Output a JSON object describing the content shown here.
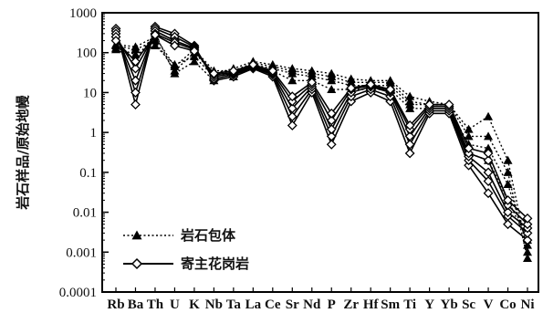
{
  "chart_data": {
    "type": "line",
    "ylabel": "岩石样品/原始地幔",
    "yscale": "log",
    "ylim": [
      0.0001,
      1000
    ],
    "yticks": [
      "1000",
      "100",
      "10",
      "1",
      "0.1",
      "0.01",
      "0.001",
      "0.0001"
    ],
    "categories": [
      "Rb",
      "Ba",
      "Th",
      "U",
      "K",
      "Nb",
      "Ta",
      "La",
      "Ce",
      "Sr",
      "Nd",
      "P",
      "Zr",
      "Hf",
      "Sm",
      "Ti",
      "Y",
      "Yb",
      "Sc",
      "V",
      "Co",
      "Ni"
    ],
    "legend_position": "bottom-left",
    "legend": [
      {
        "label": "岩石包体",
        "style": "dotted",
        "marker": "triangle"
      },
      {
        "label": "寄主花岗岩",
        "style": "solid",
        "marker": "diamond"
      }
    ],
    "series": [
      {
        "group": "enclave",
        "style": "dotted",
        "marker": "triangle",
        "values": [
          150,
          120,
          200,
          35,
          100,
          30,
          40,
          60,
          50,
          40,
          35,
          30,
          22,
          20,
          20,
          8,
          6,
          5,
          1.2,
          2.5,
          0.2,
          0.001
        ]
      },
      {
        "group": "enclave",
        "style": "dotted",
        "marker": "triangle",
        "values": [
          130,
          90,
          150,
          50,
          80,
          25,
          30,
          50,
          40,
          30,
          25,
          20,
          15,
          15,
          15,
          5,
          5,
          5,
          0.8,
          0.8,
          0.1,
          0.0007
        ]
      },
      {
        "group": "enclave",
        "style": "dotted",
        "marker": "triangle",
        "values": [
          120,
          70,
          300,
          30,
          60,
          20,
          25,
          45,
          35,
          20,
          20,
          12,
          12,
          12,
          12,
          4,
          4,
          4,
          0.5,
          0.4,
          0.05,
          0.0015
        ]
      },
      {
        "group": "enclave",
        "style": "dotted",
        "marker": "triangle",
        "values": [
          160,
          140,
          250,
          45,
          120,
          35,
          35,
          55,
          45,
          35,
          30,
          25,
          18,
          18,
          18,
          6,
          5,
          5,
          0.3,
          0.2,
          0.02,
          0.002
        ]
      },
      {
        "group": "host",
        "style": "solid",
        "marker": "diamond",
        "values": [
          400,
          5,
          450,
          300,
          150,
          20,
          25,
          40,
          25,
          1.5,
          10,
          0.5,
          6,
          10,
          6,
          0.3,
          3,
          3,
          0.15,
          0.03,
          0.005,
          0.002
        ]
      },
      {
        "group": "host",
        "style": "solid",
        "marker": "diamond",
        "values": [
          350,
          10,
          400,
          250,
          140,
          22,
          28,
          42,
          28,
          2.5,
          12,
          0.8,
          8,
          12,
          8,
          0.5,
          3.5,
          3.5,
          0.2,
          0.06,
          0.008,
          0.003
        ]
      },
      {
        "group": "host",
        "style": "solid",
        "marker": "diamond",
        "values": [
          300,
          20,
          350,
          200,
          130,
          25,
          30,
          45,
          30,
          4,
          14,
          1.2,
          10,
          14,
          10,
          0.8,
          4,
          4,
          0.25,
          0.1,
          0.01,
          0.004
        ]
      },
      {
        "group": "host",
        "style": "solid",
        "marker": "diamond",
        "values": [
          250,
          40,
          300,
          180,
          120,
          28,
          32,
          48,
          32,
          6,
          16,
          2,
          12,
          15,
          11,
          1.2,
          4.5,
          4.5,
          0.3,
          0.2,
          0.015,
          0.005
        ]
      },
      {
        "group": "host",
        "style": "solid",
        "marker": "diamond",
        "values": [
          200,
          60,
          280,
          150,
          110,
          30,
          35,
          50,
          35,
          8,
          18,
          3,
          13,
          16,
          12,
          1.5,
          5,
          5,
          0.4,
          0.3,
          0.02,
          0.007
        ]
      }
    ]
  }
}
